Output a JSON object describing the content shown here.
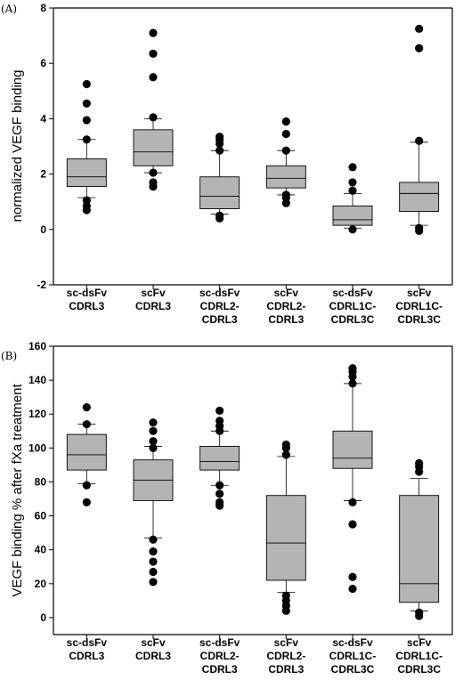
{
  "chart_data": [
    {
      "type": "box",
      "panel_label": "(A)",
      "ylabel": "normalized VEGF binding",
      "ylim": [
        -2,
        8
      ],
      "yticks": [
        -2,
        0,
        2,
        4,
        6,
        8
      ],
      "grid": false,
      "categories": [
        [
          "sc-dsFv",
          "CDRL3"
        ],
        [
          "scFv",
          "CDRL3"
        ],
        [
          "sc-dsFv",
          "CDRL2-",
          "CDRL3"
        ],
        [
          "scFv",
          "CDRL2-",
          "CDRL3"
        ],
        [
          "sc-dsFv",
          "CDRL1C-",
          "CDRL3C"
        ],
        [
          "scFv",
          "CDRL1C-",
          "CDRL3C"
        ]
      ],
      "boxes": [
        {
          "whisker_low": 1.15,
          "q1": 1.55,
          "median": 1.9,
          "q3": 2.55,
          "whisker_high": 3.25,
          "outliers": [
            0.7,
            0.85,
            1.05,
            3.25,
            3.95,
            4.55,
            5.25
          ]
        },
        {
          "whisker_low": 2.05,
          "q1": 2.3,
          "median": 2.8,
          "q3": 3.6,
          "whisker_high": 4.0,
          "outliers": [
            1.55,
            1.7,
            2.05,
            4.05,
            5.5,
            6.35,
            7.1
          ]
        },
        {
          "whisker_low": 0.55,
          "q1": 0.75,
          "median": 1.2,
          "q3": 1.9,
          "whisker_high": 2.85,
          "outliers": [
            0.4,
            0.5,
            2.85,
            3.1,
            3.25,
            3.35
          ]
        },
        {
          "whisker_low": 1.25,
          "q1": 1.5,
          "median": 1.85,
          "q3": 2.3,
          "whisker_high": 2.85,
          "outliers": [
            0.95,
            1.15,
            1.25,
            2.85,
            3.45,
            3.9
          ]
        },
        {
          "whisker_low": 0.05,
          "q1": 0.15,
          "median": 0.35,
          "q3": 0.85,
          "whisker_high": 1.3,
          "outliers": [
            0.0,
            1.4,
            1.7,
            2.25
          ]
        },
        {
          "whisker_low": 0.15,
          "q1": 0.65,
          "median": 1.3,
          "q3": 1.7,
          "whisker_high": 3.15,
          "outliers": [
            -0.05,
            0.05,
            3.2,
            6.55,
            7.25
          ]
        }
      ]
    },
    {
      "type": "box",
      "panel_label": "(B)",
      "ylabel": "VEGF binding % after fXa treatment",
      "ylim": [
        -10,
        160
      ],
      "yticks": [
        0,
        20,
        40,
        60,
        80,
        100,
        120,
        140,
        160
      ],
      "grid": false,
      "categories": [
        [
          "sc-dsFv",
          "CDRL3"
        ],
        [
          "scFv",
          "CDRL3"
        ],
        [
          "sc-dsFv",
          "CDRL2-",
          "CDRL3"
        ],
        [
          "scFv",
          "CDRL2-",
          "CDRL3"
        ],
        [
          "sc-dsFv",
          "CDRL1C-",
          "CDRL3C"
        ],
        [
          "scFv",
          "CDRL1C-",
          "CDRL3C"
        ]
      ],
      "boxes": [
        {
          "whisker_low": 79,
          "q1": 87,
          "median": 96,
          "q3": 108,
          "whisker_high": 114,
          "outliers": [
            68,
            78,
            114,
            124
          ]
        },
        {
          "whisker_low": 47,
          "q1": 69,
          "median": 81,
          "q3": 93,
          "whisker_high": 101,
          "outliers": [
            21,
            27,
            33,
            39,
            46,
            100,
            104,
            110,
            115
          ]
        },
        {
          "whisker_low": 78,
          "q1": 87,
          "median": 92,
          "q3": 101,
          "whisker_high": 110,
          "outliers": [
            66,
            68,
            73,
            78,
            110,
            113,
            116,
            122
          ]
        },
        {
          "whisker_low": 15,
          "q1": 22,
          "median": 44,
          "q3": 72,
          "whisker_high": 95,
          "outliers": [
            4,
            7,
            10,
            13,
            96,
            100,
            102
          ]
        },
        {
          "whisker_low": 69,
          "q1": 88,
          "median": 94,
          "q3": 110,
          "whisker_high": 138,
          "outliers": [
            17,
            24,
            55,
            68,
            138,
            142,
            145,
            147
          ]
        },
        {
          "whisker_low": 4,
          "q1": 9,
          "median": 20,
          "q3": 72,
          "whisker_high": 82,
          "outliers": [
            1,
            3,
            86,
            89,
            91
          ]
        }
      ]
    }
  ]
}
